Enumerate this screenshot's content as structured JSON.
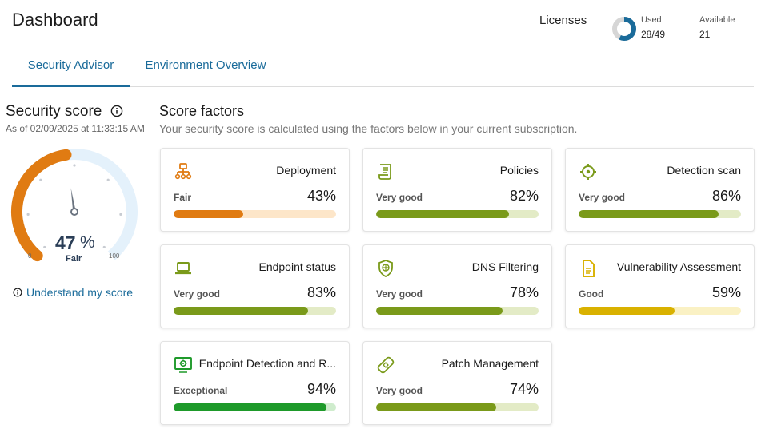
{
  "header": {
    "title": "Dashboard"
  },
  "licenses": {
    "label": "Licenses",
    "used_label": "Used",
    "used_value": "28/49",
    "used_fraction": 0.571,
    "available_label": "Available",
    "available_value": "21"
  },
  "tabs": [
    {
      "label": "Security Advisor",
      "active": true
    },
    {
      "label": "Environment Overview",
      "active": false
    }
  ],
  "security_score": {
    "title": "Security score",
    "as_of": "As of 02/09/2025 at 11:33:15 AM",
    "value": "47",
    "unit": "%",
    "rating": "Fair",
    "min": "0",
    "max": "100",
    "understand_link": "Understand my score"
  },
  "score_factors": {
    "title": "Score factors",
    "subtitle": "Your security score is calculated using the factors below in your current subscription.",
    "cards": [
      {
        "name": "Deployment",
        "rating": "Fair",
        "percent": "43%",
        "value": 43,
        "icon": "network-icon",
        "color": "#e07b12",
        "track": "#fde6c9"
      },
      {
        "name": "Policies",
        "rating": "Very good",
        "percent": "82%",
        "value": 82,
        "icon": "policy-document-icon",
        "color": "#7a9a1a",
        "track": "#e3ebc6"
      },
      {
        "name": "Detection scan",
        "rating": "Very good",
        "percent": "86%",
        "value": 86,
        "icon": "crosshair-icon",
        "color": "#7a9a1a",
        "track": "#e3ebc6"
      },
      {
        "name": "Endpoint status",
        "rating": "Very good",
        "percent": "83%",
        "value": 83,
        "icon": "laptop-icon",
        "color": "#7a9a1a",
        "track": "#e3ebc6"
      },
      {
        "name": "DNS Filtering",
        "rating": "Very good",
        "percent": "78%",
        "value": 78,
        "icon": "shield-icon",
        "color": "#7a9a1a",
        "track": "#e3ebc6"
      },
      {
        "name": "Vulnerability Assessment",
        "rating": "Good",
        "percent": "59%",
        "value": 59,
        "icon": "document-icon",
        "color": "#d9b100",
        "track": "#faf1c4"
      },
      {
        "name": "Endpoint Detection and R...",
        "rating": "Exceptional",
        "percent": "94%",
        "value": 94,
        "icon": "monitor-target-icon",
        "color": "#1e9a2a",
        "track": "#cfeccd"
      },
      {
        "name": "Patch Management",
        "rating": "Very good",
        "percent": "74%",
        "value": 74,
        "icon": "patch-icon",
        "color": "#7a9a1a",
        "track": "#e3ebc6"
      }
    ]
  }
}
